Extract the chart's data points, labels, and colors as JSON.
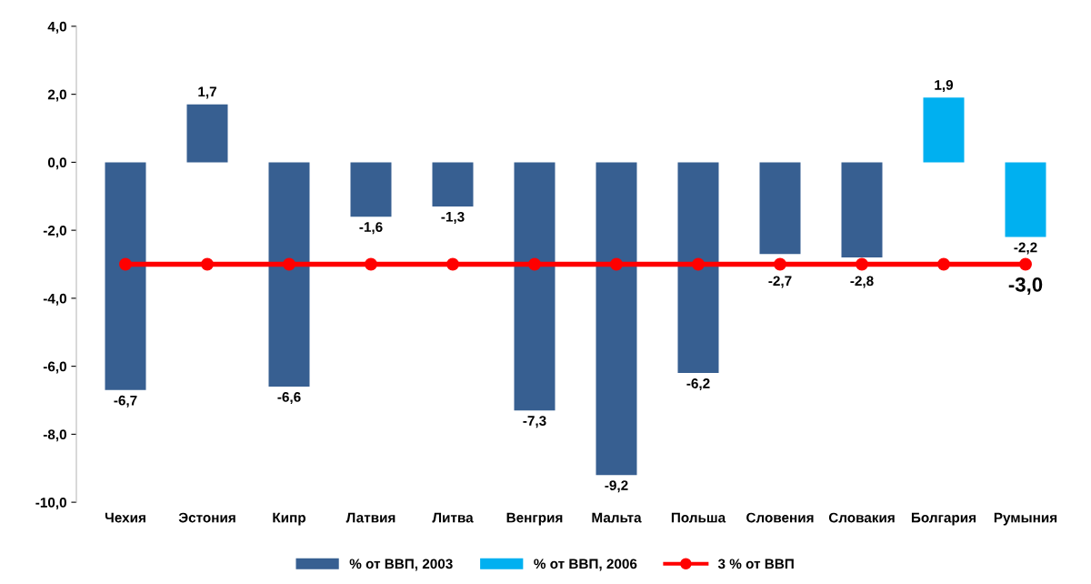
{
  "chart_data": {
    "type": "bar",
    "categories": [
      "Чехия",
      "Эстония",
      "Кипр",
      "Латвия",
      "Литва",
      "Венгрия",
      "Мальта",
      "Польша",
      "Словения",
      "Словакия",
      "Болгария",
      "Румыния"
    ],
    "series": [
      {
        "name": "% от ВВП, 2003",
        "color": "#375f91",
        "values": [
          -6.7,
          1.7,
          -6.6,
          -1.6,
          -1.3,
          -7.3,
          -9.2,
          -6.2,
          -2.7,
          -2.8,
          null,
          null
        ],
        "value_labels": [
          "-6,7",
          "1,7",
          "-6,6",
          "-1,6",
          "-1,3",
          "-7,3",
          "-9,2",
          "-6,2",
          "-2,7",
          "-2,8",
          null,
          null
        ]
      },
      {
        "name": "% от ВВП, 2006",
        "color": "#00b0f0",
        "values": [
          null,
          null,
          null,
          null,
          null,
          null,
          null,
          null,
          null,
          null,
          1.9,
          -2.2
        ],
        "value_labels": [
          null,
          null,
          null,
          null,
          null,
          null,
          null,
          null,
          null,
          null,
          "1,9",
          "-2,2"
        ]
      },
      {
        "name": "3 % от ВВП",
        "type": "line",
        "color": "#ff0000",
        "marker": "circle",
        "values": [
          -3.0,
          -3.0,
          -3.0,
          -3.0,
          -3.0,
          -3.0,
          -3.0,
          -3.0,
          -3.0,
          -3.0,
          -3.0,
          -3.0
        ],
        "value_labels": [
          null,
          null,
          null,
          null,
          null,
          null,
          null,
          null,
          null,
          null,
          null,
          "-3,0"
        ]
      }
    ],
    "ylim": [
      -10,
      4
    ],
    "yticks": [
      {
        "value": -10,
        "label": "-10,0"
      },
      {
        "value": -8,
        "label": "-8,0"
      },
      {
        "value": -6,
        "label": "-6,0"
      },
      {
        "value": -4,
        "label": "-4,0"
      },
      {
        "value": -2,
        "label": "-2,0"
      },
      {
        "value": 0,
        "label": "0,0"
      },
      {
        "value": 2,
        "label": "2,0"
      },
      {
        "value": 4,
        "label": "4,0"
      }
    ],
    "grid": false,
    "legend": "bottom"
  }
}
